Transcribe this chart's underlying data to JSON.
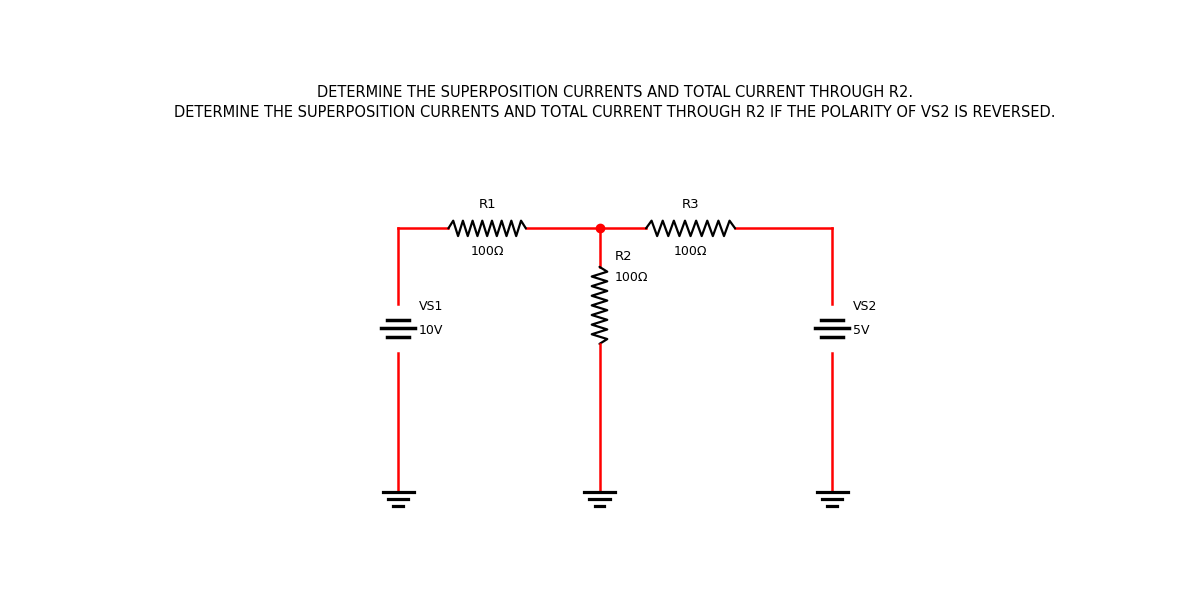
{
  "title1": "DETERMINE THE SUPERPOSITION CURRENTS AND TOTAL CURRENT THROUGH R2.",
  "title2": "DETERMINE THE SUPERPOSITION CURRENTS AND TOTAL CURRENT THROUGH R2 IF THE POLARITY OF VS2 IS REVERSED.",
  "title_fontsize": 10.5,
  "wire_color": "red",
  "component_color": "black",
  "node_color": "red",
  "bg_color": "white",
  "vs1_label": "VS1",
  "vs1_value": "10V",
  "vs2_label": "VS2",
  "vs2_value": "5V",
  "r1_label": "R1",
  "r1_value": "100Ω",
  "r2_label": "R2",
  "r2_value": "100Ω",
  "r3_label": "R3",
  "r3_value": "100Ω",
  "fig_width": 12.0,
  "fig_height": 6.07
}
